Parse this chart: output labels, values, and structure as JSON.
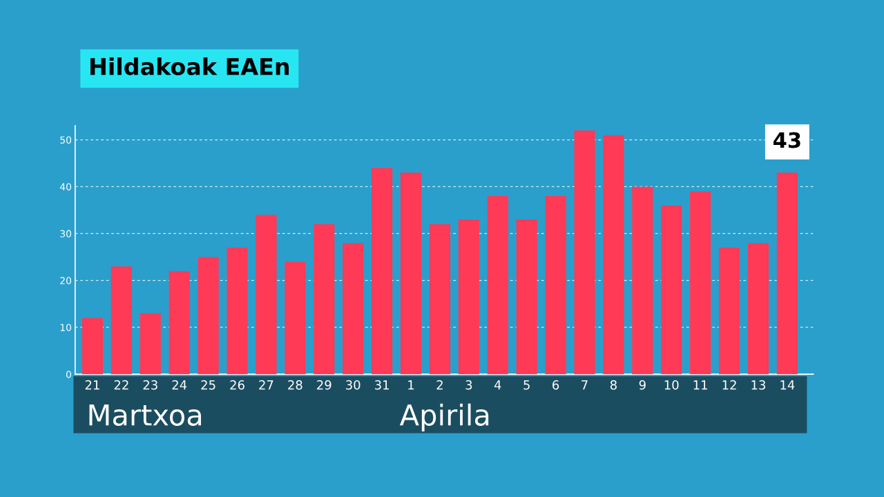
{
  "chart_data": {
    "type": "bar",
    "title": "Hildakoak EAEn",
    "categories": [
      "21",
      "22",
      "23",
      "24",
      "25",
      "26",
      "27",
      "28",
      "29",
      "30",
      "31",
      "1",
      "2",
      "3",
      "4",
      "5",
      "6",
      "7",
      "8",
      "9",
      "10",
      "11",
      "12",
      "13",
      "14"
    ],
    "values": [
      12,
      23,
      13,
      22,
      25,
      27,
      34,
      24,
      32,
      28,
      44,
      43,
      32,
      33,
      38,
      33,
      38,
      52,
      51,
      40,
      36,
      39,
      27,
      28,
      43
    ],
    "value_labels": [
      null,
      null,
      null,
      null,
      null,
      null,
      null,
      null,
      null,
      null,
      null,
      null,
      null,
      null,
      null,
      null,
      null,
      null,
      null,
      null,
      null,
      null,
      null,
      null,
      "43"
    ],
    "color": "#ff3a57",
    "ylim": [
      0,
      53
    ],
    "yticks": [
      0,
      10,
      20,
      30,
      40,
      50
    ],
    "grid": "y",
    "annotations": [
      "Martxoa",
      "Apirila"
    ]
  }
}
